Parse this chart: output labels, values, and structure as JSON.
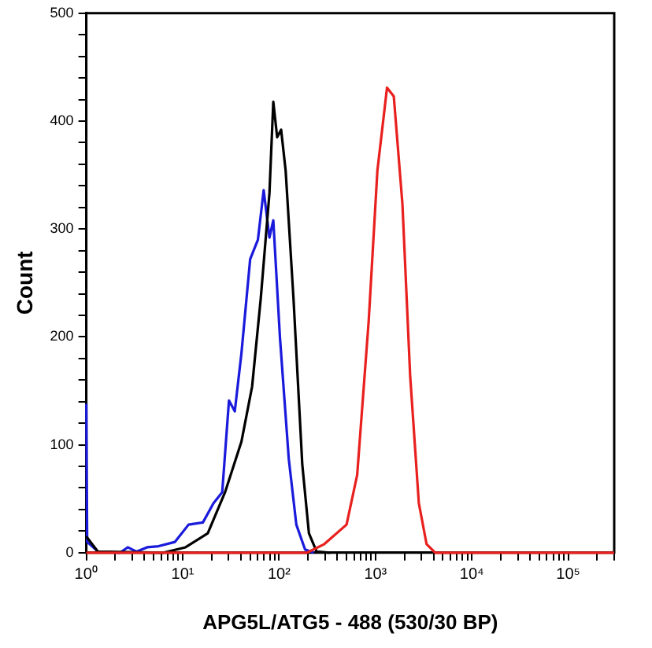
{
  "chart_data": {
    "type": "line",
    "xlabel": "APG5L/ATG5 - 488 (530/30 BP)",
    "ylabel": "Count",
    "log": "x",
    "grid": false,
    "legend": false,
    "marker": "none",
    "line_style": "solid",
    "xlim": [
      1,
      300000
    ],
    "ylim": [
      0,
      500
    ],
    "xticks": [
      {
        "value": 1,
        "label": "10⁰"
      },
      {
        "value": 2,
        "label": null
      },
      {
        "value": 3,
        "label": null
      },
      {
        "value": 4,
        "label": null
      },
      {
        "value": 5,
        "label": null
      },
      {
        "value": 6,
        "label": null
      },
      {
        "value": 7,
        "label": null
      },
      {
        "value": 8,
        "label": null
      },
      {
        "value": 9,
        "label": null
      },
      {
        "value": 10,
        "label": "10¹"
      },
      {
        "value": 20,
        "label": null
      },
      {
        "value": 30,
        "label": null
      },
      {
        "value": 40,
        "label": null
      },
      {
        "value": 50,
        "label": null
      },
      {
        "value": 60,
        "label": null
      },
      {
        "value": 70,
        "label": null
      },
      {
        "value": 80,
        "label": null
      },
      {
        "value": 90,
        "label": null
      },
      {
        "value": 100,
        "label": "10²"
      },
      {
        "value": 200,
        "label": null
      },
      {
        "value": 300,
        "label": null
      },
      {
        "value": 400,
        "label": null
      },
      {
        "value": 500,
        "label": null
      },
      {
        "value": 600,
        "label": null
      },
      {
        "value": 700,
        "label": null
      },
      {
        "value": 800,
        "label": null
      },
      {
        "value": 900,
        "label": null
      },
      {
        "value": 1000,
        "label": "10³"
      },
      {
        "value": 2000,
        "label": null
      },
      {
        "value": 3000,
        "label": null
      },
      {
        "value": 4000,
        "label": null
      },
      {
        "value": 5000,
        "label": null
      },
      {
        "value": 6000,
        "label": null
      },
      {
        "value": 7000,
        "label": null
      },
      {
        "value": 8000,
        "label": null
      },
      {
        "value": 9000,
        "label": null
      },
      {
        "value": 10000,
        "label": "10⁴"
      },
      {
        "value": 20000,
        "label": null
      },
      {
        "value": 30000,
        "label": null
      },
      {
        "value": 40000,
        "label": null
      },
      {
        "value": 50000,
        "label": null
      },
      {
        "value": 60000,
        "label": null
      },
      {
        "value": 70000,
        "label": null
      },
      {
        "value": 80000,
        "label": null
      },
      {
        "value": 90000,
        "label": null
      },
      {
        "value": 100000,
        "label": "10⁵"
      },
      {
        "value": 200000,
        "label": null
      },
      {
        "value": 300000,
        "label": null
      }
    ],
    "yticks": [
      0,
      {
        "value": 20,
        "label": null
      },
      {
        "value": 40,
        "label": null
      },
      {
        "value": 60,
        "label": null
      },
      {
        "value": 80,
        "label": null
      },
      100,
      {
        "value": 120,
        "label": null
      },
      {
        "value": 140,
        "label": null
      },
      {
        "value": 160,
        "label": null
      },
      {
        "value": 180,
        "label": null
      },
      200,
      {
        "value": 220,
        "label": null
      },
      {
        "value": 240,
        "label": null
      },
      {
        "value": 260,
        "label": null
      },
      {
        "value": 280,
        "label": null
      },
      300,
      {
        "value": 320,
        "label": null
      },
      {
        "value": 340,
        "label": null
      },
      {
        "value": 360,
        "label": null
      },
      {
        "value": 380,
        "label": null
      },
      400,
      {
        "value": 420,
        "label": null
      },
      {
        "value": 440,
        "label": null
      },
      {
        "value": 460,
        "label": null
      },
      {
        "value": 480,
        "label": null
      },
      500
    ],
    "series": [
      {
        "color": "#1a1adc",
        "x": [
          1,
          1.02,
          1.32,
          2.24,
          2.69,
          3.31,
          4.27,
          5.62,
          8.32,
          11.5,
          16.2,
          20.9,
          25.7,
          30.2,
          34.7,
          40.7,
          50.1,
          60.3,
          69.2,
          79.4,
          87.1,
          102,
          126,
          151,
          186,
          229
        ],
        "values": [
          138,
          10,
          1,
          0,
          5,
          1,
          5,
          6,
          10,
          26,
          28,
          46,
          56,
          141,
          131,
          185,
          272,
          290,
          336,
          292,
          308,
          200,
          87,
          26,
          3,
          0
        ]
      },
      {
        "color": "#000000",
        "x": [
          1,
          1.32,
          6.31,
          10.7,
          18.2,
          27.5,
          40.7,
          52.5,
          64.6,
          79.4,
          87.1,
          95.5,
          105,
          117,
          141,
          174,
          204,
          245,
          339
        ],
        "values": [
          15,
          1,
          0,
          5,
          18,
          56,
          103,
          154,
          236,
          333,
          418,
          385,
          392,
          354,
          236,
          82,
          18,
          1,
          0
        ]
      },
      {
        "color": "#e8201e",
        "x": [
          1,
          195,
          295,
          501,
          646,
          851,
          1047,
          1318,
          1549,
          1905,
          2291,
          2818,
          3388,
          4169,
          300000
        ],
        "values": [
          0,
          0,
          8,
          26,
          72,
          215,
          354,
          431,
          423,
          323,
          164,
          46,
          8,
          0,
          0
        ]
      }
    ]
  }
}
